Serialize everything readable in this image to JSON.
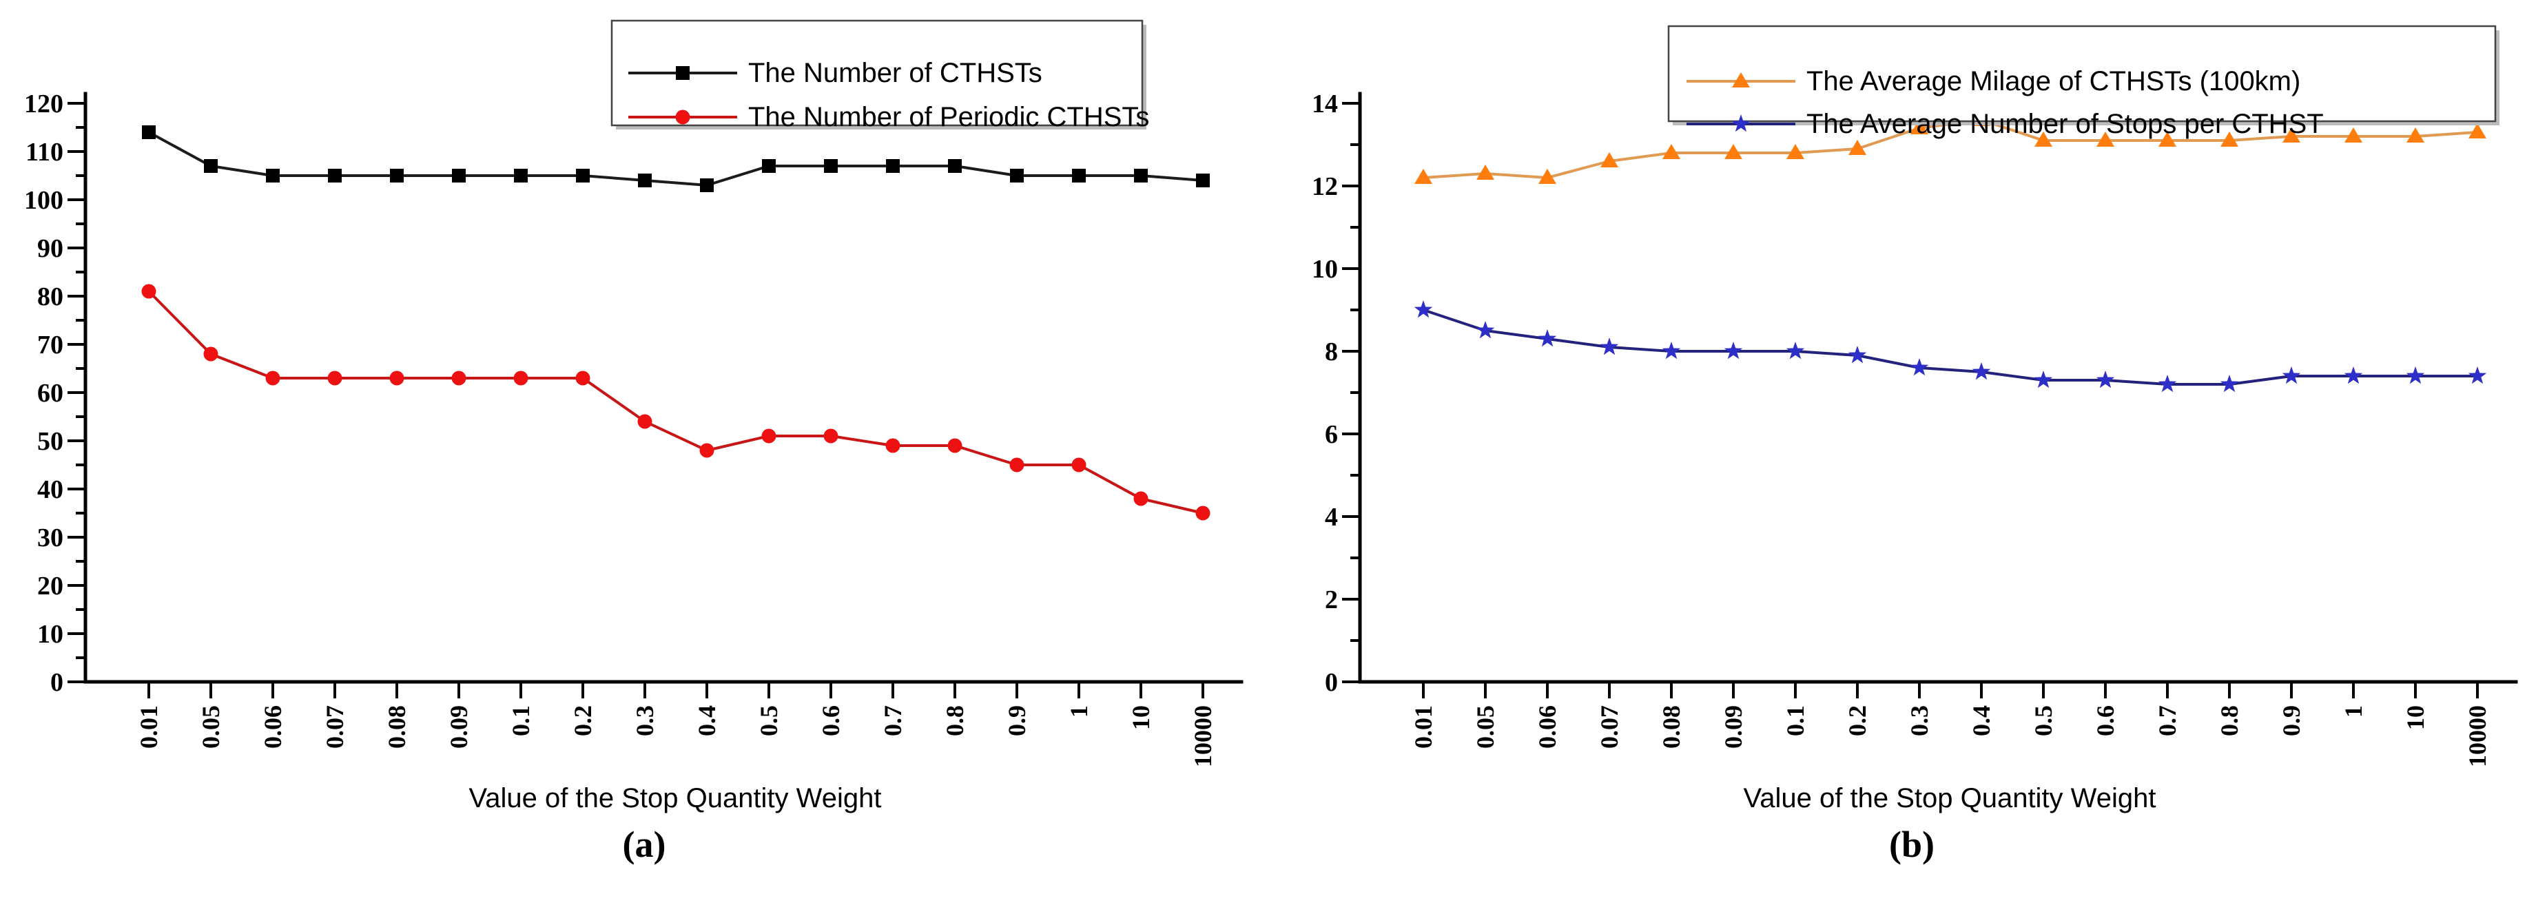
{
  "figure": {
    "background": "#ffffff",
    "x_axis_title": "Value of the Stop Quantity Weight"
  },
  "chart_data": [
    {
      "id": "a",
      "type": "line",
      "caption": "(a)",
      "title": "",
      "xlabel": "Value of the Stop Quantity Weight",
      "ylabel": "",
      "ylim": [
        0,
        120
      ],
      "ytick_step": 10,
      "yminor_step": 5,
      "grid": false,
      "legend_position": "top-right-inside",
      "categories": [
        "0.01",
        "0.05",
        "0.06",
        "0.07",
        "0.08",
        "0.09",
        "0.1",
        "0.2",
        "0.3",
        "0.4",
        "0.5",
        "0.6",
        "0.7",
        "0.8",
        "0.9",
        "1",
        "10",
        "10000"
      ],
      "series": [
        {
          "name": "The Number of CTHSTs",
          "marker": "square",
          "line_color": "#1c1c1c",
          "marker_color": "#000000",
          "values": [
            114,
            107,
            105,
            105,
            105,
            105,
            105,
            105,
            104,
            103,
            107,
            107,
            107,
            107,
            105,
            105,
            105,
            104
          ]
        },
        {
          "name": "The Number of Periodic CTHSTs",
          "marker": "circle",
          "line_color": "#c81616",
          "marker_color": "#ee1111",
          "values": [
            81,
            68,
            63,
            63,
            63,
            63,
            63,
            63,
            54,
            48,
            51,
            51,
            49,
            49,
            45,
            45,
            38,
            35
          ]
        }
      ]
    },
    {
      "id": "b",
      "type": "line",
      "caption": "(b)",
      "title": "",
      "xlabel": "Value of the Stop Quantity Weight",
      "ylabel": "",
      "ylim": [
        0,
        14
      ],
      "ytick_step": 2,
      "yminor_step": 1,
      "grid": false,
      "legend_position": "top-center-inside",
      "categories": [
        "0.01",
        "0.05",
        "0.06",
        "0.07",
        "0.08",
        "0.09",
        "0.1",
        "0.2",
        "0.3",
        "0.4",
        "0.5",
        "0.6",
        "0.7",
        "0.8",
        "0.9",
        "1",
        "10",
        "10000"
      ],
      "series": [
        {
          "name": "The Average Milage of CTHSTs (100km)",
          "marker": "triangle",
          "line_color": "#e09a52",
          "marker_color": "#ff7d0d",
          "values": [
            12.2,
            12.3,
            12.2,
            12.6,
            12.8,
            12.8,
            12.8,
            12.9,
            13.4,
            13.6,
            13.1,
            13.1,
            13.1,
            13.1,
            13.2,
            13.2,
            13.2,
            13.3
          ]
        },
        {
          "name": "The Average Number of Stops per CTHST",
          "marker": "star",
          "line_color": "#23237d",
          "marker_color": "#2e2ec8",
          "values": [
            9.0,
            8.5,
            8.3,
            8.1,
            8.0,
            8.0,
            8.0,
            7.9,
            7.6,
            7.5,
            7.3,
            7.3,
            7.2,
            7.2,
            7.4,
            7.4,
            7.4,
            7.4
          ]
        }
      ]
    }
  ]
}
